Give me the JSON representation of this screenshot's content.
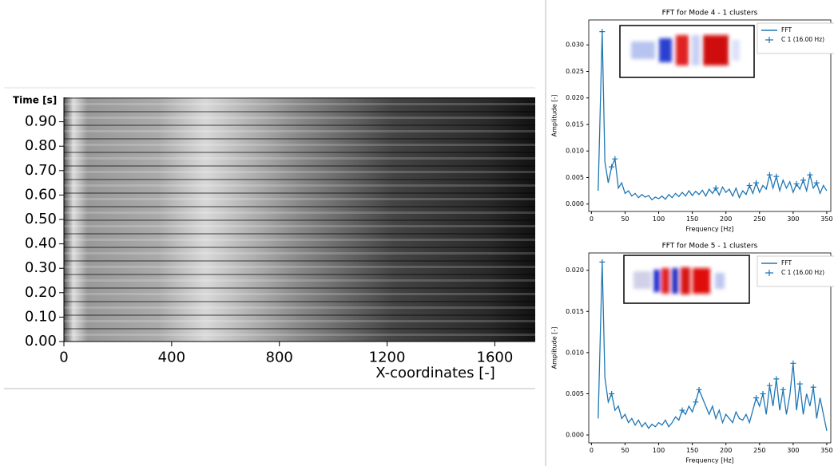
{
  "chart_data": [
    {
      "type": "image",
      "x_label": "X-coordinates [-]",
      "y_label": "Time [s]",
      "xlim": [
        0,
        1750
      ],
      "xticks": [
        0,
        400,
        800,
        1200,
        1600
      ],
      "ylim": [
        0,
        1.0
      ],
      "yticks": [
        {
          "value": 0,
          "label": "0.00"
        },
        {
          "value": 0.1,
          "label": "0.10"
        },
        {
          "value": 0.2,
          "label": "0.20"
        },
        {
          "value": 0.3,
          "label": "0.30"
        },
        {
          "value": 0.4,
          "label": "0.40"
        },
        {
          "value": 0.5,
          "label": "0.50"
        },
        {
          "value": 0.6,
          "label": "0.60"
        },
        {
          "value": 0.7,
          "label": "0.70"
        },
        {
          "value": 0.8,
          "label": "0.80"
        },
        {
          "value": 0.9,
          "label": "0.90"
        }
      ]
    },
    {
      "type": "line",
      "title": "FFT for Mode 4 - 1 clusters",
      "x_label": "Frequency [Hz]",
      "y_label": "Amplitude [-]",
      "xlim": [
        -4,
        356
      ],
      "xticks": [
        0,
        50,
        100,
        150,
        200,
        250,
        300,
        350
      ],
      "ylim": [
        -0.0014,
        0.0347
      ],
      "yticks": [
        {
          "value": 0,
          "label": "0.000"
        },
        0.005,
        {
          "value": 0.01,
          "label": "0.010"
        },
        0.015,
        {
          "value": 0.02,
          "label": "0.020"
        },
        0.025,
        {
          "value": 0.03,
          "label": "0.030"
        }
      ],
      "series": [
        {
          "name": "FFT",
          "color": "#1f77b4",
          "x": [
            10,
            16,
            20,
            25,
            30,
            35,
            40,
            45,
            50,
            55,
            60,
            65,
            70,
            75,
            80,
            85,
            90,
            95,
            100,
            105,
            110,
            115,
            120,
            125,
            130,
            135,
            140,
            145,
            150,
            155,
            160,
            165,
            170,
            175,
            180,
            185,
            190,
            195,
            200,
            205,
            210,
            215,
            220,
            225,
            230,
            235,
            240,
            245,
            250,
            255,
            260,
            265,
            270,
            275,
            280,
            285,
            290,
            295,
            300,
            305,
            310,
            315,
            320,
            325,
            330,
            335,
            340,
            345,
            350
          ],
          "values": [
            0.0025,
            0.0325,
            0.008,
            0.004,
            0.007,
            0.0085,
            0.003,
            0.004,
            0.002,
            0.0025,
            0.0015,
            0.002,
            0.0012,
            0.0018,
            0.0013,
            0.0016,
            0.0008,
            0.0013,
            0.001,
            0.0015,
            0.0009,
            0.0018,
            0.0012,
            0.002,
            0.0014,
            0.0022,
            0.0015,
            0.0025,
            0.0016,
            0.0024,
            0.0018,
            0.0026,
            0.0015,
            0.0028,
            0.002,
            0.003,
            0.0017,
            0.0032,
            0.0022,
            0.0028,
            0.0015,
            0.003,
            0.0012,
            0.0025,
            0.0018,
            0.0035,
            0.002,
            0.004,
            0.0022,
            0.0035,
            0.0028,
            0.0055,
            0.003,
            0.0052,
            0.0025,
            0.0045,
            0.003,
            0.0042,
            0.0022,
            0.0038,
            0.0028,
            0.0045,
            0.0025,
            0.0055,
            0.003,
            0.004,
            0.002,
            0.0035,
            0.0025
          ]
        },
        {
          "name": "C 1 (16.00 Hz)",
          "color": "#1f77b4",
          "marker": "+",
          "x": [
            16,
            30,
            35,
            185,
            235,
            245,
            265,
            275,
            305,
            315,
            325,
            335
          ],
          "values": [
            0.0325,
            0.007,
            0.0085,
            0.003,
            0.0035,
            0.004,
            0.0055,
            0.0052,
            0.0038,
            0.0045,
            0.0055,
            0.004
          ]
        }
      ]
    },
    {
      "type": "line",
      "title": "FFT for Mode 5 - 1 clusters",
      "x_label": "Frequency [Hz]",
      "y_label": "Amplitude [-]",
      "xlim": [
        -4,
        356
      ],
      "xticks": [
        0,
        50,
        100,
        150,
        200,
        250,
        300,
        350
      ],
      "ylim": [
        -0.00096,
        0.0221
      ],
      "yticks": [
        {
          "value": 0,
          "label": "0.000"
        },
        0.005,
        {
          "value": 0.01,
          "label": "0.010"
        },
        0.015,
        {
          "value": 0.02,
          "label": "0.020"
        }
      ],
      "series": [
        {
          "name": "FFT",
          "color": "#1f77b4",
          "x": [
            10,
            16,
            20,
            25,
            30,
            35,
            40,
            45,
            50,
            55,
            60,
            65,
            70,
            75,
            80,
            85,
            90,
            95,
            100,
            105,
            110,
            115,
            120,
            125,
            130,
            135,
            140,
            145,
            150,
            155,
            160,
            165,
            170,
            175,
            180,
            185,
            190,
            195,
            200,
            205,
            210,
            215,
            220,
            225,
            230,
            235,
            240,
            245,
            250,
            255,
            260,
            265,
            270,
            275,
            280,
            285,
            290,
            295,
            300,
            305,
            310,
            315,
            320,
            325,
            330,
            335,
            340,
            345,
            350
          ],
          "values": [
            0.002,
            0.021,
            0.007,
            0.004,
            0.005,
            0.003,
            0.0035,
            0.002,
            0.0025,
            0.0015,
            0.002,
            0.0012,
            0.0018,
            0.001,
            0.0015,
            0.0008,
            0.0013,
            0.001,
            0.0015,
            0.0012,
            0.0018,
            0.001,
            0.0015,
            0.0022,
            0.0018,
            0.003,
            0.0025,
            0.0035,
            0.0028,
            0.004,
            0.0055,
            0.0045,
            0.0035,
            0.0025,
            0.0035,
            0.002,
            0.003,
            0.0015,
            0.0025,
            0.002,
            0.0015,
            0.0028,
            0.002,
            0.0018,
            0.0025,
            0.0015,
            0.003,
            0.0045,
            0.0035,
            0.005,
            0.0025,
            0.006,
            0.0035,
            0.0068,
            0.003,
            0.0055,
            0.0025,
            0.0048,
            0.0087,
            0.003,
            0.0062,
            0.0025,
            0.005,
            0.0035,
            0.0058,
            0.002,
            0.0045,
            0.0025,
            0.0005
          ]
        },
        {
          "name": "C 1 (16.00 Hz)",
          "color": "#1f77b4",
          "marker": "+",
          "x": [
            16,
            30,
            135,
            155,
            160,
            245,
            255,
            265,
            275,
            285,
            300,
            310,
            330
          ],
          "values": [
            0.021,
            0.005,
            0.003,
            0.004,
            0.0055,
            0.0045,
            0.005,
            0.006,
            0.0068,
            0.0055,
            0.0087,
            0.0062,
            0.0058
          ]
        }
      ]
    }
  ]
}
